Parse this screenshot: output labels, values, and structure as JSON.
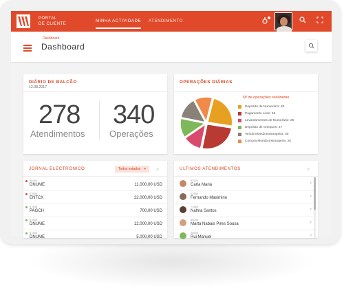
{
  "app": {
    "brand_line1": "PORTAL",
    "brand_line2": "DE CLIENTE"
  },
  "nav": {
    "active": "MINHA ACTIVIDADE",
    "second": "ATENDIMENTO"
  },
  "header": {
    "breadcrumb": "Dashboard",
    "title": "Dashboard"
  },
  "icons": {
    "notify": "notification-icon",
    "search": "search-icon",
    "fullscreen": "fullscreen-icon",
    "menu": "hamburger-icon"
  },
  "diario": {
    "title": "DIÁRIO DE BALCÃO",
    "date": "12.08.2017",
    "atendimentos_value": "278",
    "atendimentos_label": "Atendimentos",
    "operacoes_value": "340",
    "operacoes_label": "Operações"
  },
  "operacoes": {
    "title": "OPERAÇÕES DIÁRIAS",
    "legend_title": "Nº de operações realizadas",
    "items": [
      {
        "label": "Depósito de Numerário: 50",
        "value": 50,
        "color": "#e8a020"
      },
      {
        "label": "Pagamento Livre: 55",
        "value": 55,
        "color": "#b83a32"
      },
      {
        "label": "Levantamentos de Numerário: 26",
        "value": 26,
        "color": "#d94b6c"
      },
      {
        "label": "Depósito de Cheques: 27",
        "value": 27,
        "color": "#7fb85a"
      },
      {
        "label": "Venda Moeda Estrangeira: 30",
        "value": 30,
        "color": "#8a8178"
      },
      {
        "label": "Compra Moeda Estrangeira: 25",
        "value": 25,
        "color": "#f08a4a"
      }
    ]
  },
  "jornal": {
    "title": "JORNAL ELECTRÓNICO",
    "dropdown": "Todos estados",
    "rows": [
      {
        "code": "58434",
        "name": "DNUME",
        "amount": "11.000,00 USD",
        "dot": "#d94b4b"
      },
      {
        "code": "57658",
        "name": "ENTCX",
        "amount": "22.000,00 USD",
        "dot": "#d94b4b"
      },
      {
        "code": "57648",
        "name": "PAGCH",
        "amount": "700,00 USD",
        "dot": "#7fb85a"
      },
      {
        "code": "57845",
        "name": "DNUME",
        "amount": "12.000,00 USD",
        "dot": "#7fb85a"
      },
      {
        "code": "57844",
        "name": "DNUME",
        "amount": "5.000,00 USD",
        "dot": "#7fb85a"
      }
    ]
  },
  "ultimos": {
    "title": "ÚLTIMOS ATENDIMENTOS",
    "rows": [
      {
        "code": "32520",
        "name": "Carla Maria"
      },
      {
        "code": "12560",
        "name": "Fernando Maximino"
      },
      {
        "code": "71660",
        "name": "Nalma Santos"
      },
      {
        "code": "88005",
        "name": "Marta Nabais Pires Sousa"
      },
      {
        "code": "28504",
        "name": "Rui Manuel"
      }
    ]
  }
}
